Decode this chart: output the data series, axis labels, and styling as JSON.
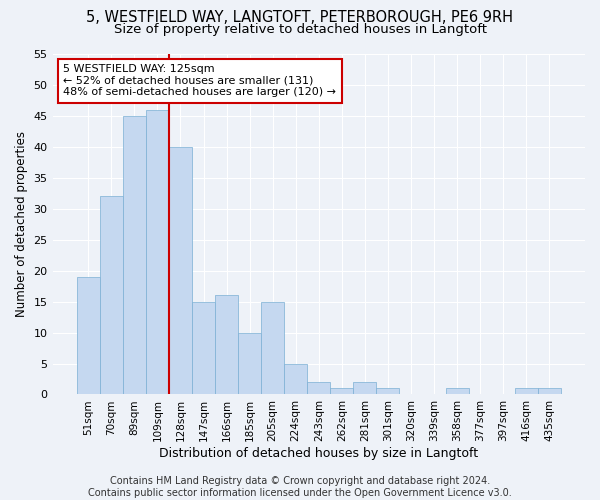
{
  "title1": "5, WESTFIELD WAY, LANGTOFT, PETERBOROUGH, PE6 9RH",
  "title2": "Size of property relative to detached houses in Langtoft",
  "xlabel": "Distribution of detached houses by size in Langtoft",
  "ylabel": "Number of detached properties",
  "categories": [
    "51sqm",
    "70sqm",
    "89sqm",
    "109sqm",
    "128sqm",
    "147sqm",
    "166sqm",
    "185sqm",
    "205sqm",
    "224sqm",
    "243sqm",
    "262sqm",
    "281sqm",
    "301sqm",
    "320sqm",
    "339sqm",
    "358sqm",
    "377sqm",
    "397sqm",
    "416sqm",
    "435sqm"
  ],
  "values": [
    19,
    32,
    45,
    46,
    40,
    15,
    16,
    10,
    15,
    5,
    2,
    1,
    2,
    1,
    0,
    0,
    1,
    0,
    0,
    1,
    1
  ],
  "bar_color": "#c5d8f0",
  "bar_edge_color": "#7bafd4",
  "annotation_text": "5 WESTFIELD WAY: 125sqm\n← 52% of detached houses are smaller (131)\n48% of semi-detached houses are larger (120) →",
  "annotation_box_color": "#ffffff",
  "annotation_box_edge_color": "#cc0000",
  "reference_line_color": "#cc0000",
  "ref_line_index": 4,
  "ylim": [
    0,
    55
  ],
  "yticks": [
    0,
    5,
    10,
    15,
    20,
    25,
    30,
    35,
    40,
    45,
    50,
    55
  ],
  "footnote": "Contains HM Land Registry data © Crown copyright and database right 2024.\nContains public sector information licensed under the Open Government Licence v3.0.",
  "title1_fontsize": 10.5,
  "title2_fontsize": 9.5,
  "xlabel_fontsize": 9,
  "ylabel_fontsize": 8.5,
  "annotation_fontsize": 8,
  "footnote_fontsize": 7,
  "background_color": "#eef2f8",
  "grid_color": "#ffffff"
}
